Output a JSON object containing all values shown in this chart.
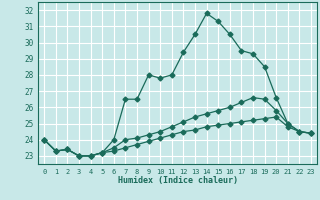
{
  "xlabel": "Humidex (Indice chaleur)",
  "bg_color": "#c8e8e8",
  "grid_color": "#ffffff",
  "line_color": "#1a6b5a",
  "xlim": [
    -0.5,
    23.5
  ],
  "ylim": [
    22.5,
    32.5
  ],
  "xticks": [
    0,
    1,
    2,
    3,
    4,
    5,
    6,
    7,
    8,
    9,
    10,
    11,
    12,
    13,
    14,
    15,
    16,
    17,
    18,
    19,
    20,
    21,
    22,
    23
  ],
  "yticks": [
    23,
    24,
    25,
    26,
    27,
    28,
    29,
    30,
    31,
    32
  ],
  "series": [
    {
      "x": [
        0,
        1,
        2,
        3,
        4,
        5,
        6,
        7,
        8,
        9,
        10,
        11,
        12,
        13,
        14,
        15,
        16,
        17,
        18,
        19,
        20,
        21,
        22,
        23
      ],
      "y": [
        24.0,
        23.3,
        23.4,
        23.0,
        23.0,
        23.2,
        24.0,
        26.5,
        26.5,
        28.0,
        27.8,
        28.0,
        29.4,
        30.5,
        31.8,
        31.3,
        30.5,
        29.5,
        29.3,
        28.5,
        26.6,
        25.0,
        24.5,
        24.4
      ],
      "marker": "D",
      "markersize": 2.5
    },
    {
      "x": [
        0,
        1,
        2,
        3,
        4,
        5,
        6,
        7,
        8,
        9,
        10,
        11,
        12,
        13,
        14,
        15,
        16,
        17,
        18,
        19,
        20,
        21,
        22,
        23
      ],
      "y": [
        24.0,
        23.3,
        23.4,
        23.0,
        23.0,
        23.2,
        23.5,
        24.0,
        24.1,
        24.3,
        24.5,
        24.8,
        25.1,
        25.4,
        25.6,
        25.8,
        26.0,
        26.3,
        26.6,
        26.5,
        25.8,
        25.0,
        24.5,
        24.4
      ],
      "marker": "D",
      "markersize": 2.5
    },
    {
      "x": [
        0,
        1,
        2,
        3,
        4,
        5,
        6,
        7,
        8,
        9,
        10,
        11,
        12,
        13,
        14,
        15,
        16,
        17,
        18,
        19,
        20,
        21,
        22,
        23
      ],
      "y": [
        24.0,
        23.3,
        23.4,
        23.0,
        23.0,
        23.2,
        23.3,
        23.5,
        23.7,
        23.9,
        24.1,
        24.3,
        24.5,
        24.6,
        24.8,
        24.9,
        25.0,
        25.1,
        25.2,
        25.3,
        25.4,
        24.8,
        24.5,
        24.4
      ],
      "marker": "D",
      "markersize": 2.5
    }
  ]
}
